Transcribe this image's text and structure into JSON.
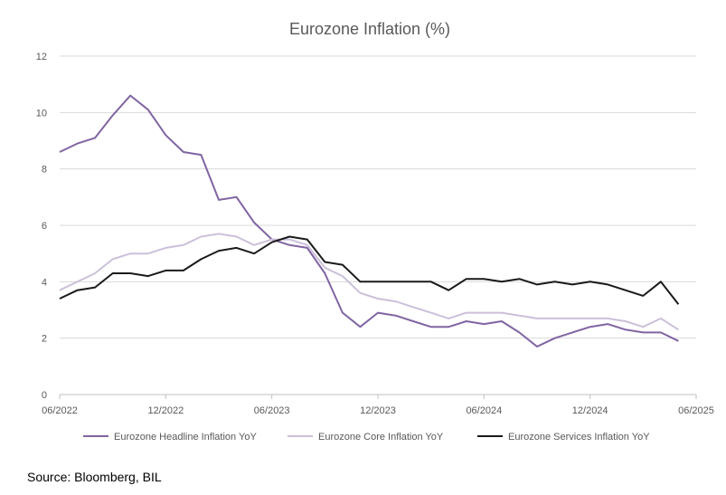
{
  "chart_data": {
    "type": "line",
    "title": "Eurozone Inflation (%)",
    "xlabel": "",
    "ylabel": "",
    "x_start": "2022-06",
    "x_end": "2025-06",
    "x_ticks": [
      "06/2022",
      "12/2022",
      "06/2023",
      "12/2023",
      "06/2024",
      "12/2024",
      "06/2025"
    ],
    "y_ticks": [
      "0",
      "2",
      "4",
      "6",
      "8",
      "10",
      "12"
    ],
    "ylim": [
      0,
      12
    ],
    "grid": "horizontal",
    "legend_position": "bottom",
    "x": [
      "2022-06",
      "2022-07",
      "2022-08",
      "2022-09",
      "2022-10",
      "2022-11",
      "2022-12",
      "2023-01",
      "2023-02",
      "2023-03",
      "2023-04",
      "2023-05",
      "2023-06",
      "2023-07",
      "2023-08",
      "2023-09",
      "2023-10",
      "2023-11",
      "2023-12",
      "2024-01",
      "2024-02",
      "2024-03",
      "2024-04",
      "2024-05",
      "2024-06",
      "2024-07",
      "2024-08",
      "2024-09",
      "2024-10",
      "2024-11",
      "2024-12",
      "2025-01",
      "2025-02",
      "2025-03",
      "2025-04",
      "2025-05"
    ],
    "series": [
      {
        "name": "Eurozone Headline Inflation YoY",
        "color": "#8064a2",
        "values": [
          8.6,
          8.9,
          9.1,
          9.9,
          10.6,
          10.1,
          9.2,
          8.6,
          8.5,
          6.9,
          7.0,
          6.1,
          5.5,
          5.3,
          5.2,
          4.3,
          2.9,
          2.4,
          2.9,
          2.8,
          2.6,
          2.4,
          2.4,
          2.6,
          2.5,
          2.6,
          2.2,
          1.7,
          2.0,
          2.2,
          2.4,
          2.5,
          2.3,
          2.2,
          2.2,
          1.9
        ]
      },
      {
        "name": "Eurozone Core Inflation YoY",
        "color": "#ccc0da",
        "values": [
          3.7,
          4.0,
          4.3,
          4.8,
          5.0,
          5.0,
          5.2,
          5.3,
          5.6,
          5.7,
          5.6,
          5.3,
          5.5,
          5.5,
          5.3,
          4.5,
          4.2,
          3.6,
          3.4,
          3.3,
          3.1,
          2.9,
          2.7,
          2.9,
          2.9,
          2.9,
          2.8,
          2.7,
          2.7,
          2.7,
          2.7,
          2.7,
          2.6,
          2.4,
          2.7,
          2.3
        ]
      },
      {
        "name": "Eurozone Services Inflation YoY",
        "color": "#1a1a1a",
        "values": [
          3.4,
          3.7,
          3.8,
          4.3,
          4.3,
          4.2,
          4.4,
          4.4,
          4.8,
          5.1,
          5.2,
          5.0,
          5.4,
          5.6,
          5.5,
          4.7,
          4.6,
          4.0,
          4.0,
          4.0,
          4.0,
          4.0,
          3.7,
          4.1,
          4.1,
          4.0,
          4.1,
          3.9,
          4.0,
          3.9,
          4.0,
          3.9,
          3.7,
          3.5,
          4.0,
          3.2
        ]
      }
    ]
  },
  "source": "Source: Bloomberg, BIL"
}
